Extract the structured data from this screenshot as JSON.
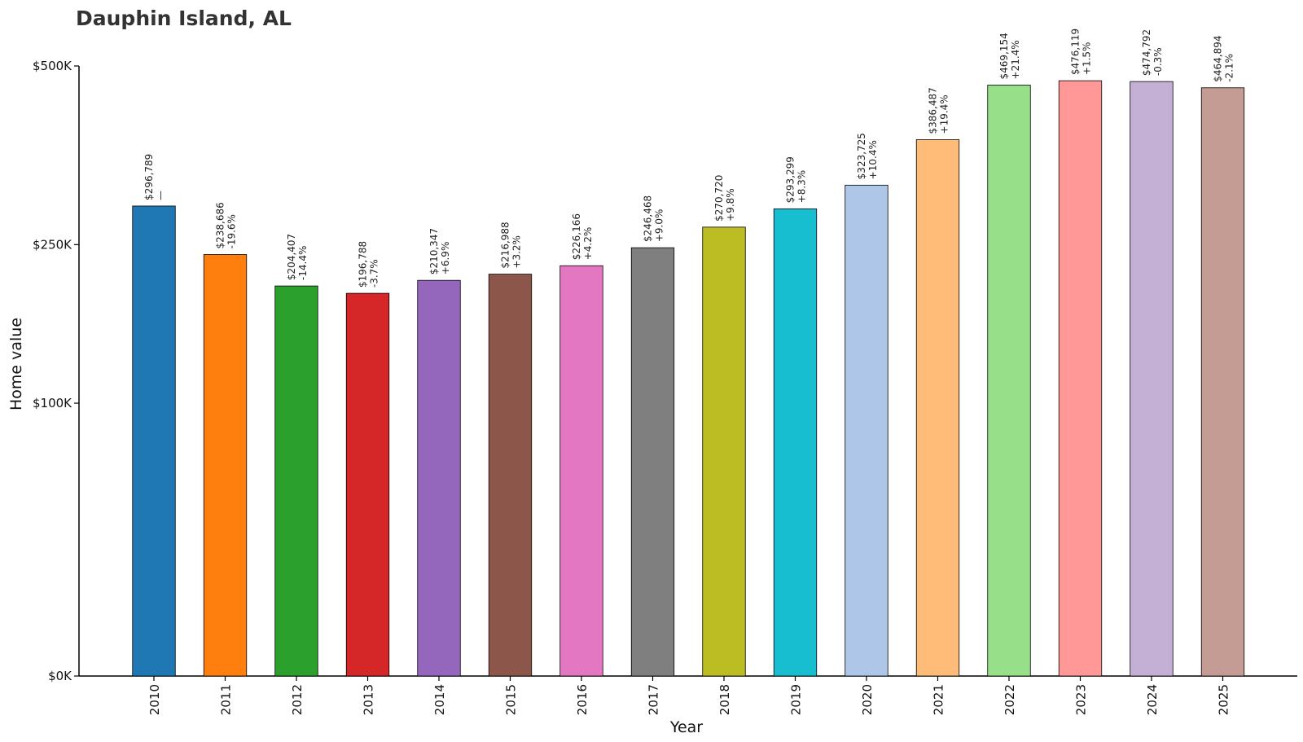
{
  "chart_data": {
    "type": "bar",
    "title": "Dauphin Island, AL",
    "xlabel": "Year",
    "ylabel": "Home value",
    "scale": "sqrt",
    "ylim": [
      0,
      500000
    ],
    "y_ticks": [
      {
        "value": 0,
        "label": "$0K"
      },
      {
        "value": 100000,
        "label": "$100K"
      },
      {
        "value": 250000,
        "label": "$250K"
      },
      {
        "value": 500000,
        "label": "$500K"
      }
    ],
    "grid": false,
    "legend": "none",
    "categories": [
      "2010",
      "2011",
      "2012",
      "2013",
      "2014",
      "2015",
      "2016",
      "2017",
      "2018",
      "2019",
      "2020",
      "2021",
      "2022",
      "2023",
      "2024",
      "2025"
    ],
    "values": [
      296789,
      238686,
      204407,
      196788,
      210347,
      216988,
      226166,
      246468,
      270720,
      293299,
      323725,
      386487,
      469154,
      476119,
      474792,
      464894
    ],
    "value_labels": [
      "$296,789",
      "$238,686",
      "$204,407",
      "$196,788",
      "$210,347",
      "$216,988",
      "$226,166",
      "$246,468",
      "$270,720",
      "$293,299",
      "$323,725",
      "$386,487",
      "$469,154",
      "$476,119",
      "$474,792",
      "$464,894"
    ],
    "change_labels": [
      "—",
      "-19.6%",
      "-14.4%",
      "-3.7%",
      "+6.9%",
      "+3.2%",
      "+4.2%",
      "+9.0%",
      "+9.8%",
      "+8.3%",
      "+10.4%",
      "+19.4%",
      "+21.4%",
      "+1.5%",
      "-0.3%",
      "-2.1%"
    ],
    "colors": [
      "#1f77b4",
      "#ff7f0e",
      "#2ca02c",
      "#d62728",
      "#9467bd",
      "#8c564b",
      "#e377c2",
      "#7f7f7f",
      "#bcbd22",
      "#17becf",
      "#aec7e8",
      "#ffbb78",
      "#98df8a",
      "#ff9896",
      "#c5b0d5",
      "#c49c94"
    ]
  }
}
